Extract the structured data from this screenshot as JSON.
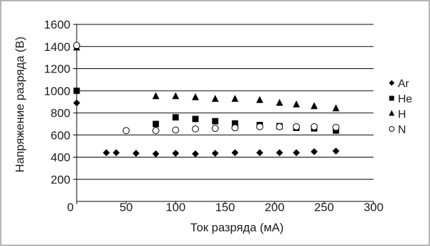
{
  "chart_data": {
    "type": "scatter",
    "title": "",
    "xlabel": "Ток разряда (мА)",
    "ylabel": "Напряжение разряда (В)",
    "xlim": [
      0,
      300
    ],
    "ylim": [
      0,
      1600
    ],
    "x_ticks": [
      "0",
      "50",
      "100",
      "150",
      "200",
      "250",
      "300"
    ],
    "y_ticks": [
      "200",
      "400",
      "600",
      "800",
      "1000",
      "1200",
      "1400",
      "1600"
    ],
    "grid": "horizontal",
    "legend_position": "right",
    "series": [
      {
        "name": "Ar",
        "marker": "diamond",
        "color": "#000000",
        "points": [
          [
            0,
            890
          ],
          [
            30,
            440
          ],
          [
            40,
            440
          ],
          [
            60,
            435
          ],
          [
            80,
            430
          ],
          [
            100,
            435
          ],
          [
            120,
            430
          ],
          [
            140,
            435
          ],
          [
            160,
            440
          ],
          [
            185,
            440
          ],
          [
            205,
            440
          ],
          [
            222,
            440
          ],
          [
            240,
            450
          ],
          [
            262,
            455
          ]
        ]
      },
      {
        "name": "He",
        "marker": "square",
        "color": "#000000",
        "points": [
          [
            0,
            1000
          ],
          [
            80,
            700
          ],
          [
            100,
            760
          ],
          [
            120,
            745
          ],
          [
            140,
            725
          ],
          [
            160,
            705
          ],
          [
            185,
            690
          ],
          [
            205,
            680
          ],
          [
            222,
            665
          ],
          [
            240,
            660
          ],
          [
            262,
            640
          ]
        ]
      },
      {
        "name": "H",
        "marker": "triangle",
        "color": "#000000",
        "points": [
          [
            0,
            1390
          ],
          [
            80,
            950
          ],
          [
            100,
            950
          ],
          [
            120,
            940
          ],
          [
            140,
            925
          ],
          [
            160,
            925
          ],
          [
            185,
            915
          ],
          [
            205,
            890
          ],
          [
            222,
            875
          ],
          [
            240,
            860
          ],
          [
            262,
            840
          ]
        ]
      },
      {
        "name": "N",
        "marker": "circle-open",
        "color": "#000000",
        "points": [
          [
            0,
            1410
          ],
          [
            50,
            640
          ],
          [
            80,
            640
          ],
          [
            100,
            645
          ],
          [
            120,
            655
          ],
          [
            140,
            660
          ],
          [
            160,
            665
          ],
          [
            185,
            675
          ],
          [
            205,
            675
          ],
          [
            222,
            675
          ],
          [
            240,
            675
          ],
          [
            262,
            670
          ]
        ]
      }
    ]
  }
}
